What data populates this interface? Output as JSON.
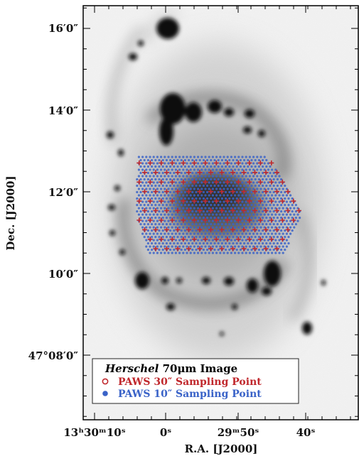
{
  "chart_data": {
    "type": "scatter",
    "title": "",
    "xlabel": "R.A. [J2000]",
    "ylabel": "Dec. [J2000]",
    "x_ticks": [
      {
        "value": "13h30m10s",
        "label": "13ʰ30ᵐ10ˢ"
      },
      {
        "value": "13h30m00s",
        "label": "0ˢ"
      },
      {
        "value": "13h29m50s",
        "label": "29ᵐ50ˢ"
      },
      {
        "value": "13h29m40s",
        "label": "40ˢ"
      }
    ],
    "y_ticks": [
      {
        "value": "47d08m00s",
        "label": "47°08′0″"
      },
      {
        "value": "47d10m00s",
        "label": "10′0″"
      },
      {
        "value": "47d12m00s",
        "label": "12′0″"
      },
      {
        "value": "47d14m00s",
        "label": "14′0″"
      },
      {
        "value": "47d16m00s",
        "label": "16′0″"
      }
    ],
    "background_image": "Herschel 70μm Image",
    "legend": {
      "position": "bottom-left",
      "entries": [
        {
          "prefix": "Herschel",
          "text": " 70μm Image",
          "marker": "none",
          "color": "#000000"
        },
        {
          "text": "PAWS 30″ Sampling Point",
          "marker": "open-circle",
          "color": "#c0282d"
        },
        {
          "text": "PAWS 10″ Sampling Point",
          "marker": "filled-circle",
          "color": "#3a63c8"
        }
      ]
    },
    "series": [
      {
        "name": "PAWS 30″ Sampling Point",
        "marker": "plus",
        "color": "#c0282d",
        "region": "hexagonal grid covering central galaxy disk, Dec 10′30″ to 12′55″"
      },
      {
        "name": "PAWS 10″ Sampling Point",
        "marker": "dot",
        "color": "#3a63c8",
        "region": "dense hexagonal grid within same field"
      }
    ],
    "grid": false
  }
}
